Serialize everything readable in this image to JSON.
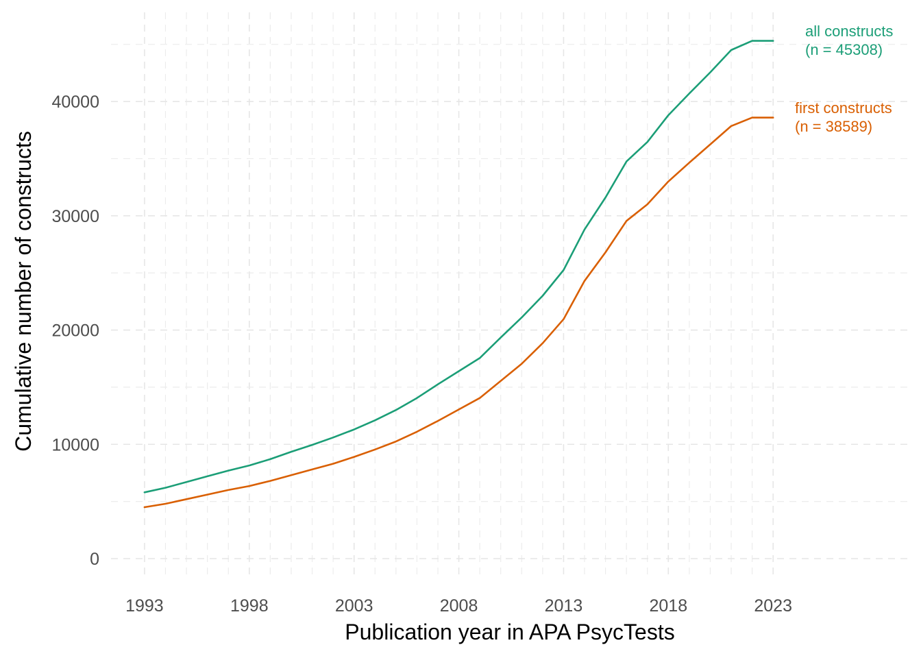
{
  "chart_data": {
    "type": "line",
    "title": "",
    "xlabel": "Publication year in APA PsycTests",
    "ylabel": "Cumulative number of constructs",
    "xlim": [
      1991.4,
      2029.6
    ],
    "ylim": [
      -1800,
      47800
    ],
    "x_ticks": [
      1993,
      1998,
      2003,
      2008,
      2013,
      2018,
      2023
    ],
    "y_ticks": [
      0,
      10000,
      20000,
      30000,
      40000
    ],
    "y_tick_labels": [
      "0",
      "10000",
      "20000",
      "30000",
      "40000"
    ],
    "x_tick_labels": [
      "1993",
      "1998",
      "2003",
      "2008",
      "2013",
      "2018",
      "2023"
    ],
    "grid": true,
    "legend": "none (direct labels at line ends)",
    "x": [
      1993,
      1994,
      1995,
      1996,
      1997,
      1998,
      1999,
      2000,
      2001,
      2002,
      2003,
      2004,
      2005,
      2006,
      2007,
      2008,
      2009,
      2010,
      2011,
      2012,
      2013,
      2014,
      2015,
      2016,
      2017,
      2018,
      2019,
      2020,
      2021,
      2022,
      2023
    ],
    "series": [
      {
        "color": "#1b9e77",
        "end_label_line1": "all constructs",
        "end_label_line2": "(n = 45308)",
        "values": [
          5800,
          6200,
          6700,
          7200,
          7700,
          8150,
          8700,
          9350,
          9950,
          10600,
          11300,
          12100,
          13000,
          14050,
          15250,
          16400,
          17550,
          19350,
          21100,
          23000,
          25250,
          28800,
          31600,
          34750,
          36450,
          38800,
          40700,
          42550,
          44500,
          45308,
          45308
        ]
      },
      {
        "color": "#d95f02",
        "end_label_line1": "first constructs",
        "end_label_line2": "(n = 38589)",
        "values": [
          4500,
          4800,
          5200,
          5600,
          6000,
          6350,
          6800,
          7300,
          7800,
          8300,
          8900,
          9550,
          10250,
          11100,
          12050,
          13050,
          14050,
          15550,
          17050,
          18850,
          20950,
          24300,
          26800,
          29550,
          31000,
          33000,
          34650,
          36250,
          37850,
          38589,
          38589
        ]
      }
    ]
  }
}
